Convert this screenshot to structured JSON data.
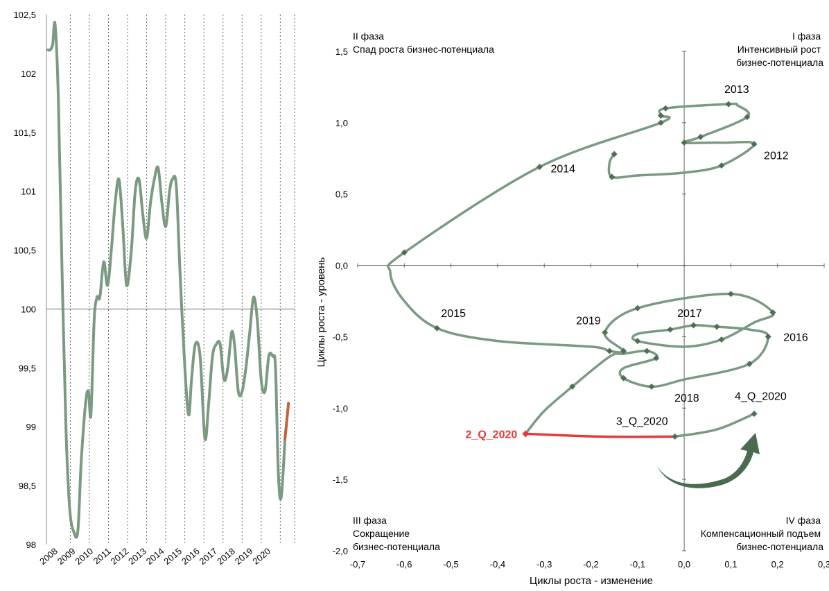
{
  "colors": {
    "series": "#7a9a82",
    "marker": "#4f6f55",
    "highlight_left": "#c0623a",
    "highlight_right": "#e53a3a",
    "arrow": "#4a6b4e",
    "gridline": "#666666"
  },
  "chart_data": [
    {
      "type": "line",
      "yticks": [
        "102,5",
        "102",
        "101,5",
        "101",
        "100,5",
        "100",
        "99,5",
        "99",
        "98,5",
        "98"
      ],
      "ylim": [
        98,
        102.5
      ],
      "reference_line": 100,
      "year_labels": [
        "2008",
        "2009",
        "2010",
        "2011",
        "2012",
        "2013",
        "2014",
        "2015",
        "2016",
        "2017",
        "2018",
        "2019",
        "2020"
      ],
      "x_range": [
        2008.0,
        2021.0
      ],
      "year_gridlines": [
        2009.25,
        2010.25,
        2011.25,
        2012.25,
        2013.25,
        2014.25,
        2015.25,
        2016.25,
        2017.25,
        2018.25,
        2019.25,
        2020.25,
        2021.0
      ],
      "series": [
        {
          "points": [
            [
              2008.08,
              102.2
            ],
            [
              2008.2,
              102.2
            ],
            [
              2008.33,
              102.25
            ],
            [
              2008.45,
              102.42
            ],
            [
              2008.62,
              101.8
            ],
            [
              2008.82,
              100.3
            ],
            [
              2009.02,
              99.0
            ],
            [
              2009.22,
              98.3
            ],
            [
              2009.45,
              98.1
            ],
            [
              2009.65,
              98.12
            ],
            [
              2009.82,
              98.7
            ],
            [
              2010.05,
              99.2
            ],
            [
              2010.2,
              99.3
            ],
            [
              2010.33,
              99.1
            ],
            [
              2010.5,
              99.9
            ],
            [
              2010.65,
              100.1
            ],
            [
              2010.8,
              100.1
            ],
            [
              2011.0,
              100.4
            ],
            [
              2011.2,
              100.2
            ],
            [
              2011.4,
              100.5
            ],
            [
              2011.6,
              100.9
            ],
            [
              2011.8,
              101.1
            ],
            [
              2012.0,
              100.7
            ],
            [
              2012.2,
              100.2
            ],
            [
              2012.45,
              100.5
            ],
            [
              2012.65,
              101.0
            ],
            [
              2012.85,
              101.1
            ],
            [
              2013.05,
              100.8
            ],
            [
              2013.25,
              100.6
            ],
            [
              2013.45,
              100.9
            ],
            [
              2013.65,
              101.1
            ],
            [
              2013.85,
              101.2
            ],
            [
              2014.05,
              100.9
            ],
            [
              2014.25,
              100.7
            ],
            [
              2014.45,
              101.0
            ],
            [
              2014.6,
              101.1
            ],
            [
              2014.8,
              101.05
            ],
            [
              2015.0,
              100.3
            ],
            [
              2015.25,
              99.5
            ],
            [
              2015.45,
              99.1
            ],
            [
              2015.6,
              99.4
            ],
            [
              2015.8,
              99.7
            ],
            [
              2016.05,
              99.6
            ],
            [
              2016.3,
              98.9
            ],
            [
              2016.5,
              99.2
            ],
            [
              2016.7,
              99.6
            ],
            [
              2016.9,
              99.7
            ],
            [
              2017.1,
              99.7
            ],
            [
              2017.3,
              99.4
            ],
            [
              2017.5,
              99.5
            ],
            [
              2017.7,
              99.8
            ],
            [
              2017.85,
              99.7
            ],
            [
              2018.05,
              99.3
            ],
            [
              2018.25,
              99.3
            ],
            [
              2018.45,
              99.5
            ],
            [
              2018.65,
              99.8
            ],
            [
              2018.85,
              100.1
            ],
            [
              2019.05,
              99.9
            ],
            [
              2019.25,
              99.4
            ],
            [
              2019.45,
              99.3
            ],
            [
              2019.65,
              99.6
            ],
            [
              2019.85,
              99.6
            ],
            [
              2020.0,
              99.5
            ],
            [
              2020.15,
              98.6
            ],
            [
              2020.3,
              98.4
            ],
            [
              2020.5,
              98.9
            ]
          ]
        },
        {
          "points": [
            [
              2020.5,
              98.9
            ],
            [
              2020.68,
              99.2
            ]
          ]
        }
      ]
    },
    {
      "type": "scatter",
      "xlabel": "Циклы роста - изменение",
      "ylabel": "Циклы роста - уровень",
      "xlim": [
        -0.7,
        0.3
      ],
      "ylim": [
        -2.0,
        1.5
      ],
      "xticks": [
        "-0,7",
        "-0,6",
        "-0,5",
        "-0,4",
        "-0,3",
        "-0,2",
        "-0,1",
        "0,0",
        "0,1",
        "0,2",
        "0,3"
      ],
      "yticks": [
        "1,5",
        "1,0",
        "0,5",
        "0,0",
        "-0,5",
        "-1,0",
        "-1,5",
        "-2,0"
      ],
      "phases": {
        "q1": [
          "I  фаза",
          "Интенсивный рост",
          "бизнес-потенциала"
        ],
        "q2": [
          "II  фаза",
          "Спад роста бизнес-потенциала"
        ],
        "q3": [
          "III фаза",
          "Сокращение",
          "бизнес-потенциала"
        ],
        "q4": [
          "IV фаза",
          "Компенсационный подъем",
          "бизнес-потенциала"
        ]
      },
      "trajectory": [
        [
          -0.15,
          0.78
        ],
        [
          -0.16,
          0.72
        ],
        [
          -0.155,
          0.62
        ],
        [
          -0.1,
          0.63
        ],
        [
          0.0,
          0.65
        ],
        [
          0.08,
          0.7
        ],
        [
          0.15,
          0.85
        ],
        [
          0.08,
          0.86
        ],
        [
          0.0,
          0.86
        ],
        [
          0.035,
          0.9
        ],
        [
          0.135,
          1.04
        ],
        [
          0.115,
          1.12
        ],
        [
          0.095,
          1.13
        ],
        [
          -0.04,
          1.1
        ],
        [
          -0.05,
          1.05
        ],
        [
          -0.05,
          1.0
        ],
        [
          -0.31,
          0.69
        ],
        [
          -0.6,
          0.09
        ],
        [
          -0.63,
          -0.05
        ],
        [
          -0.6,
          -0.25
        ],
        [
          -0.53,
          -0.44
        ],
        [
          -0.4,
          -0.53
        ],
        [
          -0.2,
          -0.57
        ],
        [
          -0.16,
          -0.6
        ],
        [
          -0.13,
          -0.6
        ],
        [
          -0.17,
          -0.47
        ],
        [
          -0.1,
          -0.3
        ],
        [
          0.1,
          -0.2
        ],
        [
          0.19,
          -0.33
        ],
        [
          0.15,
          -0.4
        ],
        [
          0.08,
          -0.52
        ],
        [
          0.0,
          -0.57
        ],
        [
          -0.1,
          -0.53
        ],
        [
          -0.1,
          -0.48
        ],
        [
          -0.03,
          -0.45
        ],
        [
          0.02,
          -0.42
        ],
        [
          0.07,
          -0.43
        ],
        [
          0.14,
          -0.45
        ],
        [
          0.18,
          -0.5
        ],
        [
          0.14,
          -0.69
        ],
        [
          0.0,
          -0.8
        ],
        [
          -0.07,
          -0.85
        ],
        [
          -0.13,
          -0.79
        ],
        [
          -0.13,
          -0.72
        ],
        [
          -0.06,
          -0.65
        ],
        [
          -0.08,
          -0.6
        ],
        [
          -0.13,
          -0.62
        ],
        [
          -0.16,
          -0.64
        ],
        [
          -0.24,
          -0.85
        ],
        [
          -0.3,
          -1.02
        ],
        [
          -0.34,
          -1.18
        ]
      ],
      "markers": [
        [
          -0.15,
          0.78
        ],
        [
          -0.155,
          0.62
        ],
        [
          0.08,
          0.7
        ],
        [
          0.15,
          0.85
        ],
        [
          0.0,
          0.86
        ],
        [
          0.035,
          0.9
        ],
        [
          0.135,
          1.04
        ],
        [
          0.095,
          1.13
        ],
        [
          -0.04,
          1.1
        ],
        [
          -0.05,
          1.05
        ],
        [
          -0.05,
          1.0
        ],
        [
          -0.31,
          0.69
        ],
        [
          -0.6,
          0.09
        ],
        [
          -0.53,
          -0.44
        ],
        [
          -0.16,
          -0.6
        ],
        [
          -0.13,
          -0.6
        ],
        [
          -0.17,
          -0.47
        ],
        [
          -0.1,
          -0.3
        ],
        [
          0.1,
          -0.2
        ],
        [
          0.19,
          -0.33
        ],
        [
          0.08,
          -0.52
        ],
        [
          -0.1,
          -0.53
        ],
        [
          -0.03,
          -0.45
        ],
        [
          0.02,
          -0.42
        ],
        [
          0.07,
          -0.43
        ],
        [
          0.18,
          -0.5
        ],
        [
          0.14,
          -0.69
        ],
        [
          -0.07,
          -0.85
        ],
        [
          -0.13,
          -0.79
        ],
        [
          -0.06,
          -0.65
        ],
        [
          -0.08,
          -0.6
        ],
        [
          -0.24,
          -0.85
        ]
      ],
      "highlight_segment": [
        [
          -0.34,
          -1.18
        ],
        [
          -0.18,
          -1.2
        ],
        [
          -0.02,
          -1.2
        ]
      ],
      "highlight_marker": [
        -0.34,
        -1.18
      ],
      "recovery_segment": [
        [
          -0.02,
          -1.2
        ],
        [
          0.07,
          -1.15
        ],
        [
          0.15,
          -1.04
        ]
      ],
      "recovery_markers": [
        [
          -0.02,
          -1.2
        ],
        [
          0.15,
          -1.04
        ]
      ],
      "annotations": [
        {
          "text": "2013",
          "x": 0.095,
          "y": 1.13
        },
        {
          "text": "2012",
          "x": 0.15,
          "y": 0.85
        },
        {
          "text": "2014",
          "x": -0.31,
          "y": 0.69
        },
        {
          "text": "2015",
          "x": -0.53,
          "y": -0.44
        },
        {
          "text": "2019",
          "x": -0.17,
          "y": -0.47
        },
        {
          "text": "2017",
          "x": 0.0,
          "y": -0.42
        },
        {
          "text": "2016",
          "x": 0.18,
          "y": -0.5
        },
        {
          "text": "2018",
          "x": 0.0,
          "y": -0.8
        },
        {
          "text": "4_Q_2020",
          "x": 0.15,
          "y": -1.04
        },
        {
          "text": "3_Q_2020",
          "x": -0.02,
          "y": -1.2
        },
        {
          "text": "2_Q_2020",
          "x": -0.34,
          "y": -1.18,
          "highlight": true
        }
      ]
    }
  ]
}
